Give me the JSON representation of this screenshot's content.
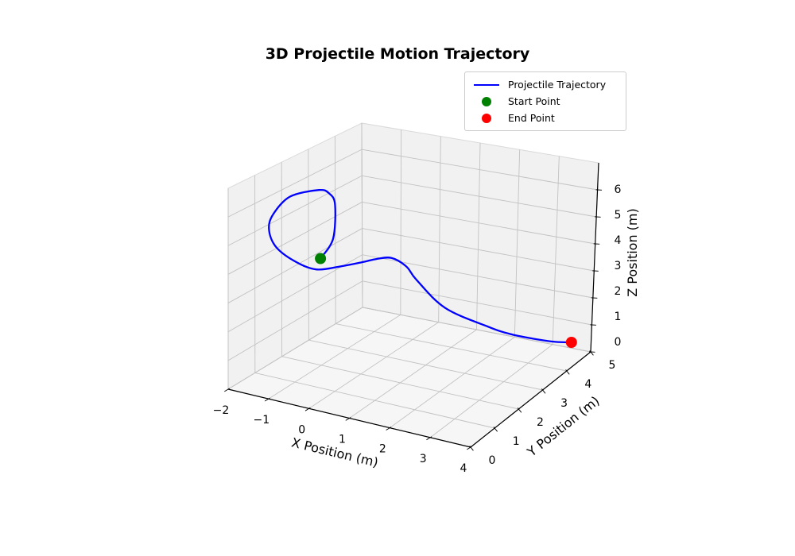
{
  "title": "3D Projectile Motion Trajectory",
  "legend": {
    "items": [
      {
        "label": "Projectile Trajectory",
        "type": "line",
        "color": "#0000ff"
      },
      {
        "label": "Start Point",
        "type": "marker",
        "color": "#008000"
      },
      {
        "label": "End Point",
        "type": "marker",
        "color": "#ff0000"
      }
    ]
  },
  "chart_data": {
    "type": "line",
    "subtype": "3d-trajectory",
    "title": "3D Projectile Motion Trajectory",
    "xlabel": "X Position (m)",
    "ylabel": "Y Position (m)",
    "zlabel": "Z Position (m)",
    "xlim": [
      -2,
      4
    ],
    "ylim": [
      0,
      5
    ],
    "zlim": [
      0,
      7
    ],
    "xticks": [
      -2,
      -1,
      0,
      1,
      2,
      3,
      4
    ],
    "yticks": [
      0,
      1,
      2,
      3,
      4,
      5
    ],
    "zticks": [
      0,
      1,
      2,
      3,
      4,
      5,
      6
    ],
    "xtick_labels": [
      "−2",
      "−1",
      "0",
      "1",
      "2",
      "3",
      "4"
    ],
    "ytick_labels": [
      "0",
      "1",
      "2",
      "3",
      "4",
      "5"
    ],
    "ztick_labels": [
      "0",
      "1",
      "2",
      "3",
      "4",
      "5",
      "6"
    ],
    "grid": true,
    "legend_position": "upper right",
    "series": [
      {
        "name": "Projectile Trajectory",
        "color": "#0000ff",
        "line_width": 2.3,
        "points_xyz": [
          [
            0.0,
            0.45,
            4.9
          ],
          [
            0.25,
            0.55,
            5.6
          ],
          [
            0.2,
            0.7,
            6.7
          ],
          [
            -0.05,
            0.85,
            6.95
          ],
          [
            -0.4,
            1.0,
            6.9
          ],
          [
            -1.15,
            1.05,
            6.45
          ],
          [
            -1.6,
            1.1,
            5.7
          ],
          [
            -1.75,
            1.15,
            5.1
          ],
          [
            -1.65,
            1.25,
            4.45
          ],
          [
            -1.25,
            1.35,
            4.0
          ],
          [
            -0.8,
            1.5,
            3.75
          ],
          [
            -0.3,
            1.7,
            3.9
          ],
          [
            0.1,
            1.9,
            4.05
          ],
          [
            0.35,
            2.05,
            4.15
          ],
          [
            0.6,
            2.25,
            4.15
          ],
          [
            0.85,
            2.45,
            3.8
          ],
          [
            1.0,
            2.6,
            3.3
          ],
          [
            1.45,
            3.05,
            2.15
          ],
          [
            2.2,
            3.6,
            1.35
          ],
          [
            2.6,
            3.9,
            1.0
          ],
          [
            3.0,
            4.2,
            0.75
          ],
          [
            3.35,
            4.55,
            0.5
          ],
          [
            3.55,
            4.9,
            0.3
          ]
        ]
      }
    ],
    "markers": [
      {
        "name": "Start Point",
        "color": "#008000",
        "point_xyz": [
          0.0,
          0.45,
          4.9
        ],
        "size": 7
      },
      {
        "name": "End Point",
        "color": "#ff0000",
        "point_xyz": [
          3.55,
          4.9,
          0.3
        ],
        "size": 7
      }
    ]
  },
  "colors": {
    "pane_wall": "#f1f1f1",
    "pane_floor": "#f6f6f6",
    "pane_edge": "#d9d9d9",
    "grid_line": "#c2c2c2",
    "spine": "#000000",
    "text": "#000000"
  }
}
